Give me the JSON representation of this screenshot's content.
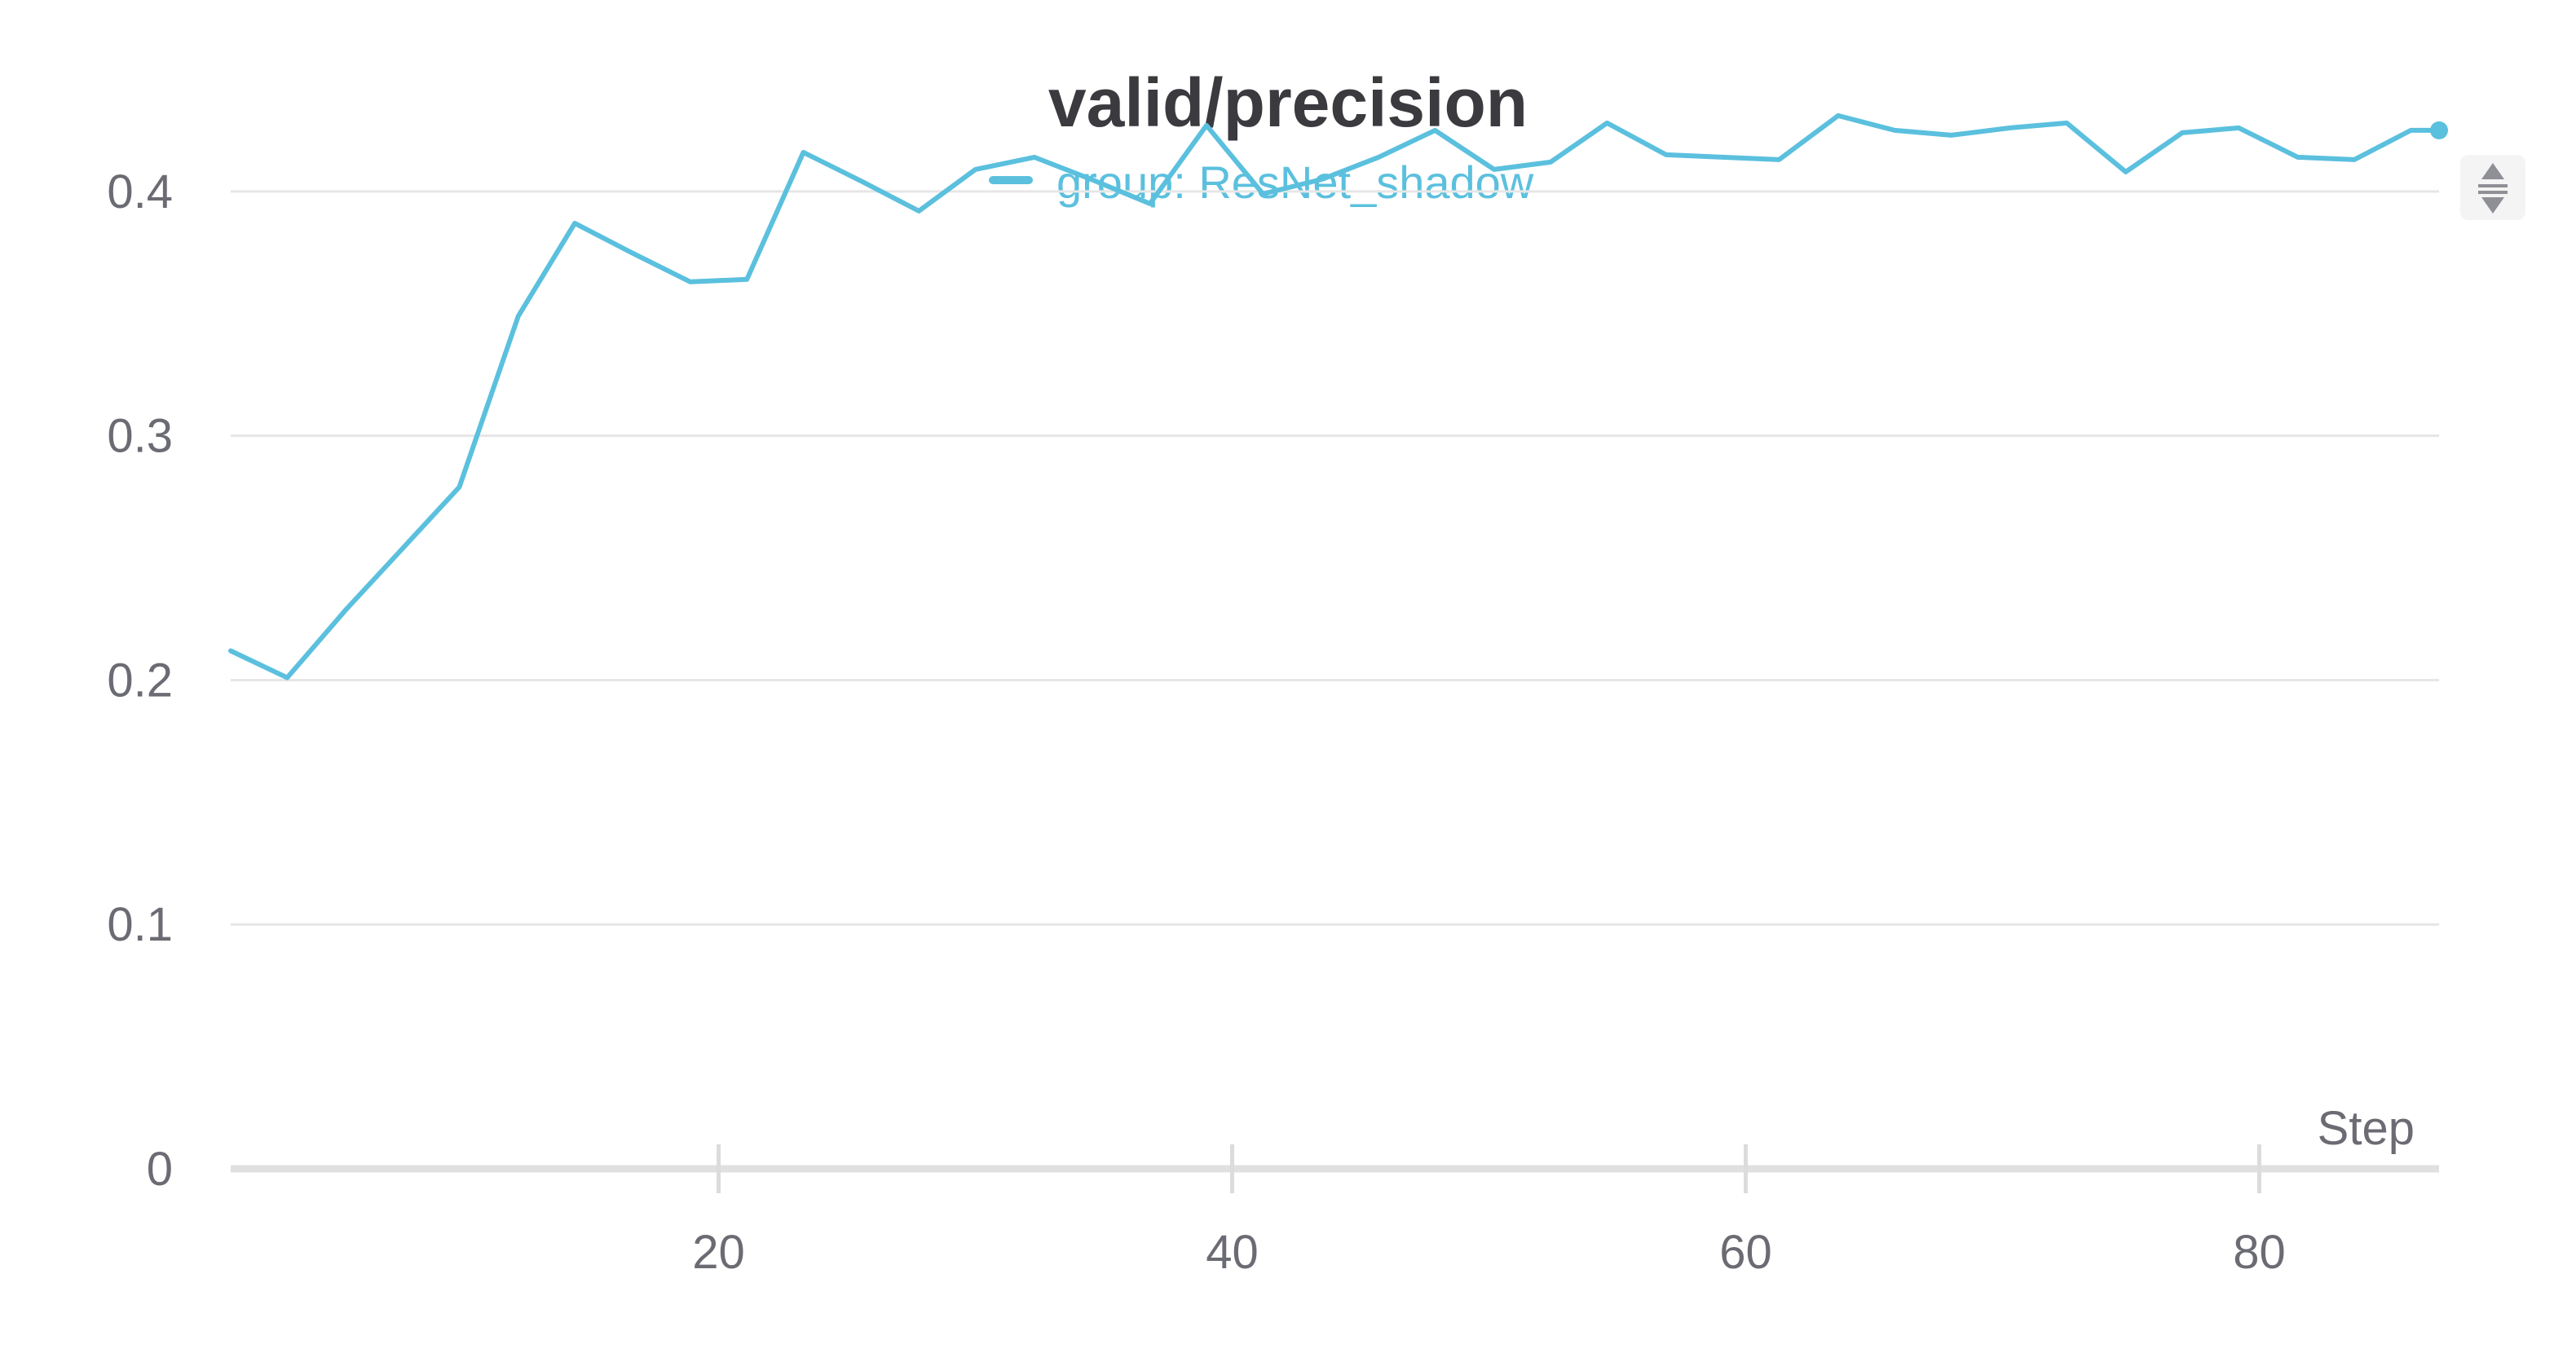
{
  "chart_data": {
    "type": "line",
    "title": "valid/precision",
    "xlabel": "Step",
    "ylabel": "",
    "xlim": [
      1,
      87
    ],
    "ylim": [
      0,
      0.455
    ],
    "x_ticks": [
      20,
      40,
      60,
      80
    ],
    "y_ticks": [
      0,
      0.1,
      0.2,
      0.3,
      0.4
    ],
    "y_tick_labels": [
      "0",
      "0.1",
      "0.2",
      "0.3",
      "0.4"
    ],
    "x_tick_labels": [
      "20",
      "40",
      "60",
      "80"
    ],
    "grid": true,
    "legend_position": "top-center",
    "series": [
      {
        "name": "group: ResNet_shadow",
        "color": "#5bc0de",
        "x": [
          1.0,
          3.2,
          5.5,
          7.7,
          9.9,
          12.2,
          14.4,
          16.6,
          18.9,
          21.1,
          23.3,
          25.6,
          27.8,
          30.0,
          32.3,
          34.5,
          36.8,
          39.0,
          41.2,
          43.5,
          45.7,
          47.9,
          50.2,
          52.4,
          54.6,
          56.9,
          59.1,
          61.3,
          63.6,
          65.8,
          68.0,
          70.3,
          72.5,
          74.8,
          77.0,
          79.2,
          81.5,
          83.7,
          85.9,
          87.0
        ],
        "y": [
          0.212,
          0.201,
          0.229,
          0.254,
          0.279,
          0.349,
          0.387,
          0.375,
          0.363,
          0.364,
          0.416,
          0.404,
          0.392,
          0.409,
          0.414,
          0.405,
          0.395,
          0.427,
          0.399,
          0.405,
          0.414,
          0.425,
          0.409,
          0.412,
          0.428,
          0.415,
          0.414,
          0.413,
          0.431,
          0.425,
          0.423,
          0.426,
          0.428,
          0.408,
          0.424,
          0.426,
          0.414,
          0.413,
          0.425,
          0.425
        ]
      }
    ]
  },
  "icons": {
    "resize_handle": "drag-resize-icon"
  }
}
